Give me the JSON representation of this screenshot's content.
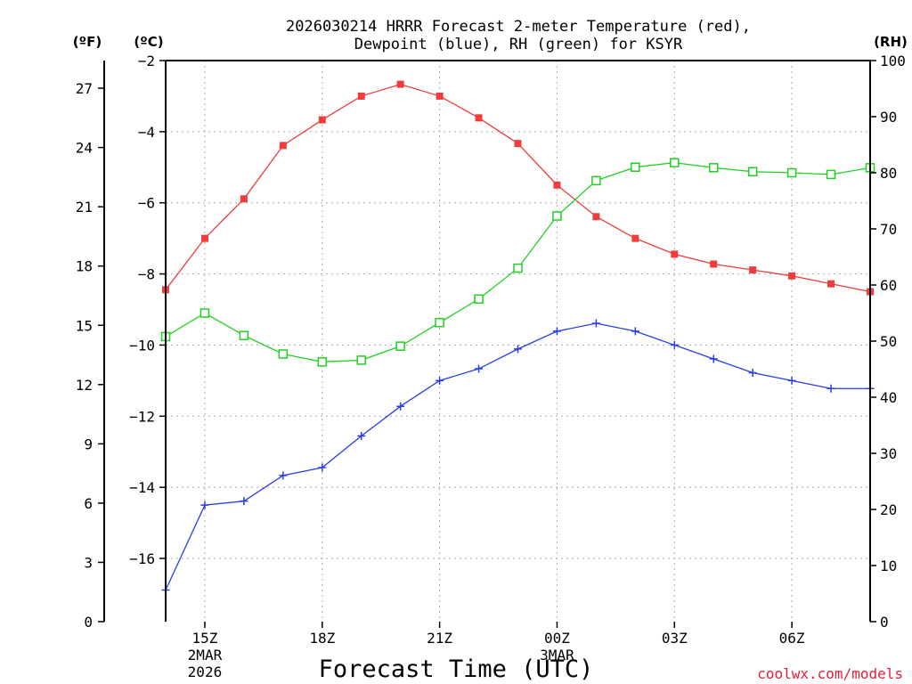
{
  "chart_data": {
    "type": "line",
    "title": "2026030214 HRRR Forecast 2-meter Temperature (red),",
    "subtitle": "Dewpoint (blue), RH (green) for KSYR",
    "xlabel": "Forecast Time (UTC)",
    "units": {
      "fahrenheit": "(ºF)",
      "celsius": "(ºC)",
      "rh": "(RH)"
    },
    "watermark": "coolwx.com/models",
    "x": [
      14,
      15,
      16,
      17,
      18,
      19,
      20,
      21,
      22,
      23,
      24,
      25,
      26,
      27,
      28,
      29,
      30,
      31,
      32
    ],
    "x_ticks": [
      {
        "hour": 15,
        "label": "15Z",
        "date": "2MAR",
        "year": "2026"
      },
      {
        "hour": 18,
        "label": "18Z"
      },
      {
        "hour": 21,
        "label": "21Z"
      },
      {
        "hour": 24,
        "label": "00Z",
        "date": "3MAR"
      },
      {
        "hour": 27,
        "label": "03Z"
      },
      {
        "hour": 30,
        "label": "06Z"
      }
    ],
    "xlim": [
      14,
      32
    ],
    "y_left_f": {
      "ticks": [
        0,
        3,
        6,
        9,
        12,
        15,
        18,
        21,
        24,
        27
      ],
      "labels": [
        "0",
        "3",
        "6",
        "9",
        "12",
        "15",
        "18",
        "21",
        "24",
        "27"
      ]
    },
    "y_left_c": {
      "ticks": [
        -16,
        -14,
        -12,
        -10,
        -8,
        -6,
        -4,
        -2
      ],
      "labels": [
        "−16",
        "−14",
        "−12",
        "−10",
        "−8",
        "−6",
        "−4",
        "−2"
      ]
    },
    "y_right_rh": {
      "ticks": [
        0,
        10,
        20,
        30,
        40,
        50,
        60,
        70,
        80,
        90,
        100
      ],
      "labels": [
        "0",
        "10",
        "20",
        "30",
        "40",
        "50",
        "60",
        "70",
        "80",
        "90",
        "100"
      ]
    },
    "ylim_f": [
      0,
      28.4
    ],
    "ylim_rh": [
      0,
      100
    ],
    "series": [
      {
        "name": "Temperature",
        "color": "#f03c3c",
        "marker": "filled-square",
        "axis": "F",
        "values": [
          16.8,
          19.4,
          21.4,
          24.1,
          25.4,
          26.6,
          27.2,
          26.6,
          25.5,
          24.2,
          22.1,
          20.5,
          19.4,
          18.6,
          18.1,
          17.8,
          17.5,
          17.1,
          16.7
        ]
      },
      {
        "name": "Dewpoint",
        "color": "#2a3ce6",
        "marker": "plus",
        "axis": "F",
        "values": [
          1.6,
          5.9,
          6.1,
          7.4,
          7.8,
          9.4,
          10.9,
          12.2,
          12.8,
          13.8,
          14.7,
          15.1,
          14.7,
          14.0,
          13.3,
          12.6,
          12.2,
          11.8,
          11.8
        ]
      },
      {
        "name": "RH",
        "color": "#22d022",
        "marker": "open-square",
        "axis": "RH",
        "values": [
          50.8,
          55.0,
          51.0,
          47.7,
          46.3,
          46.6,
          49.1,
          53.3,
          57.5,
          63.0,
          72.3,
          78.6,
          81.0,
          81.8,
          80.9,
          80.2,
          80.0,
          79.7,
          80.9
        ]
      }
    ]
  }
}
